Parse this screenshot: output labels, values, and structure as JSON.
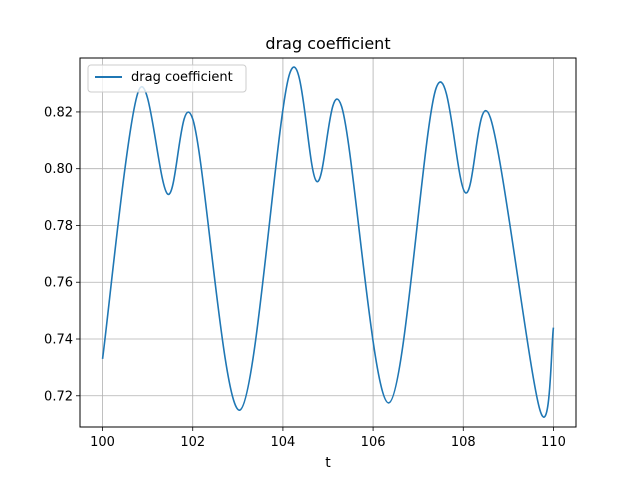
{
  "chart_data": {
    "type": "line",
    "title": "drag coefficient",
    "xlabel": "t",
    "ylabel": "",
    "xlim": [
      99.5,
      110.5
    ],
    "ylim": [
      0.709,
      0.839
    ],
    "xticks": [
      100,
      102,
      104,
      106,
      108,
      110
    ],
    "yticks": [
      0.72,
      0.74,
      0.76,
      0.78,
      0.8,
      0.82
    ],
    "xtick_labels": [
      "100",
      "102",
      "104",
      "106",
      "108",
      "110"
    ],
    "ytick_labels": [
      "0.72",
      "0.74",
      "0.76",
      "0.78",
      "0.80",
      "0.82"
    ],
    "grid": true,
    "legend": "upper-left",
    "series": [
      {
        "name": "drag coefficient",
        "color": "#1f77b4",
        "x": [
          100.0,
          100.8,
          101.45,
          102.0,
          103.05,
          104.15,
          104.75,
          105.3,
          106.35,
          107.4,
          108.05,
          108.6,
          109.7,
          110.0
        ],
        "y": [
          0.733,
          0.8275,
          0.791,
          0.8175,
          0.715,
          0.8335,
          0.7955,
          0.822,
          0.7175,
          0.8285,
          0.7915,
          0.818,
          0.715,
          0.744
        ]
      }
    ]
  }
}
